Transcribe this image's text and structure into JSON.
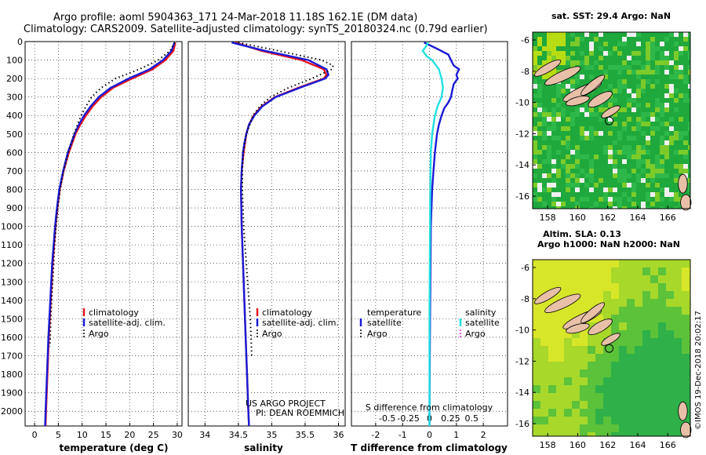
{
  "header": {
    "line1": "Argo profile: aoml 5904363_171 24-Mar-2018 11.18S 162.1E (DM data)",
    "line2": "Climatology: CARS2009. Satellite-adjusted climatology: synTS_20180324.nc (0.79d earlier)"
  },
  "footer_left": {
    "project": "US ARGO PROJECT",
    "pi": "PI: DEAN ROEMMICH"
  },
  "watermark": "©IMOS 19-Dec-2018 20:02:17",
  "colors": {
    "climatology": "#e8141e",
    "satellite": "#1a1ad6",
    "argo": "#000000",
    "sat_salinity": "#22e0e0",
    "argo_salinity": "#e020e0"
  },
  "legends": {
    "temperature": [
      "climatology",
      "satellite-adj. clim.",
      "Argo"
    ],
    "salinity": [
      "climatology",
      "satellite-adj. clim.",
      "Argo"
    ],
    "diff_titles": [
      "temperature",
      "salinity"
    ],
    "diff_temp_items": [
      "satellite",
      "Argo"
    ],
    "diff_sal_items": [
      "satellite",
      "satellite",
      "Argo"
    ]
  },
  "maps": {
    "sst_title": "sat. SST: 29.4 Argo: NaN",
    "sla_title1": "Altim. SLA: 0.13",
    "sla_title2": "Argo h1000: NaN h2000: NaN",
    "lon_ticks": [
      "158",
      "160",
      "162",
      "164",
      "166"
    ],
    "lat_ticks": [
      "-6",
      "-8",
      "-10",
      "-12",
      "-14",
      "-16"
    ],
    "lon_range": [
      157,
      167.5
    ],
    "lat_range": [
      -5.5,
      -16.8
    ],
    "float_position": {
      "lon": 162.1,
      "lat": -11.18
    }
  },
  "chart_data": [
    {
      "type": "line",
      "panel": "temperature",
      "xlabel": "temperature (deg C)",
      "ylabel": "",
      "xlim": [
        -2,
        31
      ],
      "ylim": [
        2080,
        0
      ],
      "x_ticks": [
        "0",
        "5",
        "10",
        "15",
        "20",
        "25",
        "30"
      ],
      "y_ticks": [
        "0",
        "100",
        "200",
        "300",
        "400",
        "500",
        "600",
        "700",
        "800",
        "900",
        "1000",
        "1100",
        "1200",
        "1300",
        "1400",
        "1500",
        "1600",
        "1700",
        "1800",
        "1900",
        "2000"
      ],
      "grid": true,
      "legend": "lower-center",
      "series": [
        {
          "name": "climatology",
          "depth": [
            5,
            50,
            100,
            150,
            200,
            250,
            300,
            350,
            400,
            450,
            500,
            600,
            700,
            800,
            900,
            1000,
            1200,
            1400,
            1600,
            1800,
            2000,
            2080
          ],
          "values": [
            29.6,
            29.2,
            27.5,
            24.8,
            20.5,
            16.5,
            14.0,
            12.2,
            10.8,
            9.6,
            8.6,
            7.2,
            6.1,
            5.3,
            4.8,
            4.4,
            3.8,
            3.4,
            3.0,
            2.7,
            2.4,
            2.3
          ]
        },
        {
          "name": "satellite-adj. clim.",
          "depth": [
            5,
            50,
            100,
            150,
            200,
            250,
            300,
            350,
            400,
            450,
            500,
            600,
            700,
            800,
            900,
            1000,
            1200,
            1400,
            1600,
            1800,
            2000,
            2080
          ],
          "values": [
            29.4,
            28.8,
            27.0,
            24.2,
            19.8,
            16.0,
            13.5,
            11.8,
            10.4,
            9.3,
            8.4,
            7.0,
            6.0,
            5.2,
            4.7,
            4.3,
            3.7,
            3.3,
            2.9,
            2.6,
            2.3,
            2.2
          ]
        },
        {
          "name": "Argo",
          "depth": [
            5,
            50,
            100,
            150,
            200,
            250,
            300,
            350,
            400,
            450,
            500,
            600,
            700,
            800,
            900,
            1000,
            1100,
            1200,
            1300,
            1400,
            1500,
            1600,
            1650
          ],
          "values": [
            29.5,
            28.5,
            26.0,
            22.0,
            17.0,
            14.0,
            12.0,
            10.8,
            9.8,
            9.0,
            8.3,
            7.1,
            6.1,
            5.4,
            4.9,
            4.5,
            4.2,
            4.0,
            3.8,
            3.6,
            3.4,
            3.3,
            3.2
          ]
        }
      ]
    },
    {
      "type": "line",
      "panel": "salinity",
      "xlabel": "salinity",
      "ylabel": "",
      "xlim": [
        33.75,
        36.1
      ],
      "ylim": [
        2080,
        0
      ],
      "x_ticks": [
        "34",
        "34.5",
        "35",
        "35.5",
        "36"
      ],
      "grid": true,
      "legend": "lower-center",
      "series": [
        {
          "name": "climatology",
          "depth": [
            5,
            50,
            100,
            150,
            180,
            200,
            250,
            300,
            350,
            400,
            450,
            500,
            550,
            600,
            700,
            800,
            1000,
            1200,
            1500,
            1800,
            2000,
            2080
          ],
          "values": [
            34.45,
            34.85,
            35.45,
            35.78,
            35.82,
            35.78,
            35.4,
            35.05,
            34.85,
            34.73,
            34.66,
            34.62,
            34.6,
            34.58,
            34.55,
            34.54,
            34.55,
            34.57,
            34.6,
            34.63,
            34.65,
            34.66
          ]
        },
        {
          "name": "satellite-adj. clim.",
          "depth": [
            5,
            50,
            100,
            150,
            180,
            200,
            250,
            300,
            350,
            400,
            450,
            500,
            550,
            600,
            700,
            800,
            1000,
            1200,
            1500,
            1800,
            2000,
            2080
          ],
          "values": [
            34.4,
            34.9,
            35.55,
            35.82,
            35.85,
            35.8,
            35.42,
            35.06,
            34.86,
            34.74,
            34.66,
            34.62,
            34.59,
            34.57,
            34.55,
            34.54,
            34.55,
            34.57,
            34.6,
            34.63,
            34.65,
            34.66
          ]
        },
        {
          "name": "Argo",
          "depth": [
            5,
            50,
            100,
            130,
            150,
            200,
            250,
            300,
            350,
            400,
            500,
            600,
            700,
            800,
            900,
            1000,
            1100,
            1200,
            1300,
            1400,
            1500,
            1600,
            1700
          ],
          "values": [
            34.5,
            35.1,
            35.75,
            35.92,
            35.9,
            35.6,
            35.25,
            34.98,
            34.82,
            34.72,
            34.62,
            34.57,
            34.56,
            34.56,
            34.57,
            34.58,
            34.6,
            34.62,
            34.64,
            34.66,
            34.68,
            34.69,
            34.7
          ]
        }
      ]
    },
    {
      "type": "line",
      "panel": "difference",
      "xlabel": "T difference from climatology",
      "xlabel_top": "S difference from climatology",
      "xlim": [
        -2.9,
        2.9
      ],
      "ylim": [
        2080,
        0
      ],
      "x_ticks": [
        "-2",
        "-1",
        "0",
        "1",
        "2"
      ],
      "x_ticks_top": [
        "-0.5",
        "-0.25",
        "0",
        "0.25",
        "0.5"
      ],
      "grid": true,
      "legend": "lower-center",
      "series": [
        {
          "name": "temperature satellite",
          "depth": [
            5,
            40,
            70,
            100,
            130,
            150,
            180,
            200,
            230,
            260,
            300,
            330,
            360,
            400,
            450,
            500,
            600,
            700,
            800,
            1000,
            1500,
            2000,
            2080
          ],
          "values": [
            -0.2,
            0.3,
            0.7,
            0.8,
            0.9,
            1.1,
            1.0,
            1.05,
            0.9,
            0.85,
            0.8,
            0.7,
            0.55,
            0.45,
            0.35,
            0.28,
            0.2,
            0.15,
            0.1,
            0.05,
            0.02,
            0.0,
            0.0
          ]
        },
        {
          "name": "salinity satellite",
          "depth": [
            5,
            30,
            50,
            80,
            100,
            150,
            200,
            250,
            300,
            350,
            400,
            500,
            600,
            800,
            1000,
            1500,
            2000,
            2080
          ],
          "values": [
            -0.05,
            -0.15,
            -0.25,
            -0.1,
            0.1,
            0.35,
            0.45,
            0.5,
            0.45,
            0.3,
            0.2,
            0.1,
            0.05,
            0.03,
            0.02,
            0.0,
            0.0,
            0.0
          ]
        }
      ]
    }
  ]
}
